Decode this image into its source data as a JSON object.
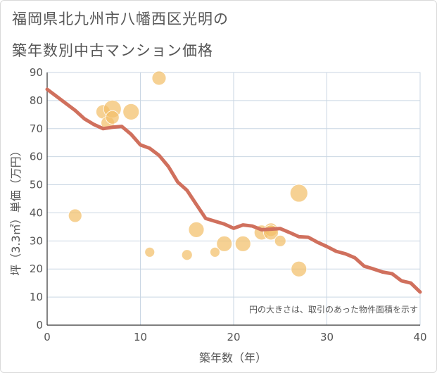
{
  "title_lines": [
    "福岡県北九州市八幡西区光明の",
    "築年数別中古マンション価格"
  ],
  "chart_data": {
    "type": "scatter",
    "xlabel": "築年数（年）",
    "ylabel": "坪（3.3㎡）単価（万円）",
    "xlim": [
      0,
      40
    ],
    "ylim": [
      0,
      90
    ],
    "xticks": [
      0,
      10,
      20,
      30,
      40
    ],
    "yticks": [
      0,
      10,
      20,
      30,
      40,
      50,
      60,
      70,
      80,
      90
    ],
    "grid": true,
    "note": "円の大きさは、取引のあった物件面積を示す",
    "colors": {
      "bubble": "#f2bf6a",
      "line": "#d0705d",
      "grid": "#c9d6e3",
      "axis": "#555555"
    },
    "bubbles": [
      {
        "x": 3,
        "y": 39,
        "size": 0.55
      },
      {
        "x": 6,
        "y": 76,
        "size": 0.6
      },
      {
        "x": 6.5,
        "y": 72,
        "size": 0.55
      },
      {
        "x": 7,
        "y": 77,
        "size": 0.85
      },
      {
        "x": 7,
        "y": 74,
        "size": 0.55
      },
      {
        "x": 9,
        "y": 76,
        "size": 0.75
      },
      {
        "x": 11,
        "y": 26,
        "size": 0.3
      },
      {
        "x": 12,
        "y": 88,
        "size": 0.6
      },
      {
        "x": 15,
        "y": 25,
        "size": 0.35
      },
      {
        "x": 16,
        "y": 34,
        "size": 0.7
      },
      {
        "x": 18,
        "y": 26,
        "size": 0.3
      },
      {
        "x": 19,
        "y": 29,
        "size": 0.7
      },
      {
        "x": 21,
        "y": 29,
        "size": 0.7
      },
      {
        "x": 23,
        "y": 33,
        "size": 0.65
      },
      {
        "x": 24,
        "y": 34,
        "size": 0.55
      },
      {
        "x": 24,
        "y": 33,
        "size": 0.65
      },
      {
        "x": 25,
        "y": 30,
        "size": 0.4
      },
      {
        "x": 27,
        "y": 47,
        "size": 0.85
      },
      {
        "x": 27,
        "y": 20,
        "size": 0.7
      }
    ],
    "trend": {
      "x": [
        0,
        1,
        2,
        3,
        4,
        5,
        6,
        7,
        8,
        9,
        10,
        11,
        12,
        13,
        14,
        15,
        16,
        17,
        18,
        19,
        20,
        21,
        22,
        23,
        24,
        25,
        26,
        27,
        28,
        29,
        30,
        31,
        32,
        33,
        34,
        35,
        36,
        37,
        38,
        39,
        40
      ],
      "y": [
        84,
        81.5,
        79,
        76.5,
        73.5,
        71.5,
        70,
        70.5,
        70.8,
        68,
        64.2,
        63,
        60.5,
        56.5,
        51,
        48,
        43,
        38,
        37,
        36,
        34.5,
        35.7,
        35.3,
        34,
        34.2,
        34.4,
        33,
        31.5,
        31.3,
        29.5,
        28,
        26.3,
        25.4,
        24,
        21,
        20,
        18.9,
        18.3,
        15.8,
        15,
        11.8
      ]
    }
  }
}
